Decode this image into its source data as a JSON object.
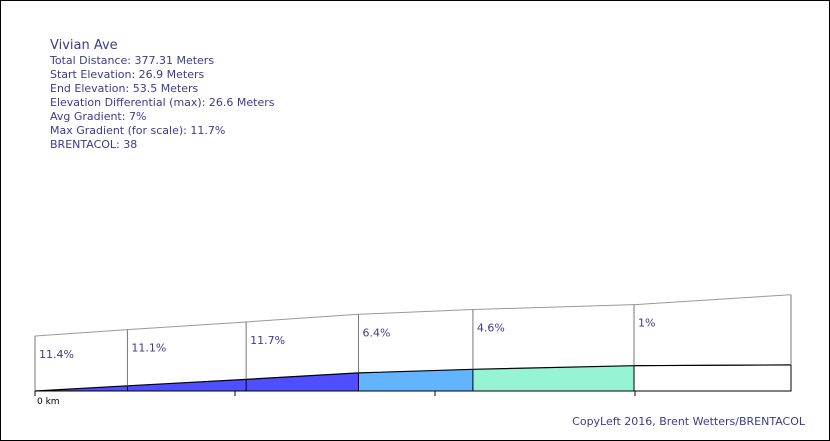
{
  "info": {
    "title": "Vivian Ave",
    "total_distance": "Total Distance: 377.31 Meters",
    "start_elevation": "Start Elevation: 26.9 Meters",
    "end_elevation": "End Elevation: 53.5 Meters",
    "elevation_differential": "Elevation Differential (max): 26.6 Meters",
    "avg_gradient": "Avg Gradient: 7%",
    "max_gradient": "Max Gradient (for scale): 11.7%",
    "brentacol": "BRENTACOL: 38"
  },
  "copyleft": "CopyLeft 2016, Brent Wetters/BRENTACOL",
  "chart_data": {
    "type": "area",
    "title": "Vivian Ave",
    "x_unit": "m",
    "x_tick_label": "0 km",
    "total_distance_m": 377.31,
    "start_elevation_m": 26.9,
    "end_elevation_m": 53.5,
    "segments": [
      {
        "label": "11.4%",
        "gradient": 11.4,
        "color": "#4f4fff"
      },
      {
        "label": "11.1%",
        "gradient": 11.1,
        "color": "#4f4fff"
      },
      {
        "label": "11.7%",
        "gradient": 11.7,
        "color": "#4f4fff"
      },
      {
        "label": "6.4%",
        "gradient": 6.4,
        "color": "#62b4ff"
      },
      {
        "label": "4.6%",
        "gradient": 4.6,
        "color": "#96f4d4"
      },
      {
        "label": "1%",
        "gradient": 1,
        "color": "#ffffff"
      }
    ],
    "segment_distances_m": [
      43.2,
      55.5,
      52.5,
      53.5,
      75.3,
      72.2
    ]
  }
}
